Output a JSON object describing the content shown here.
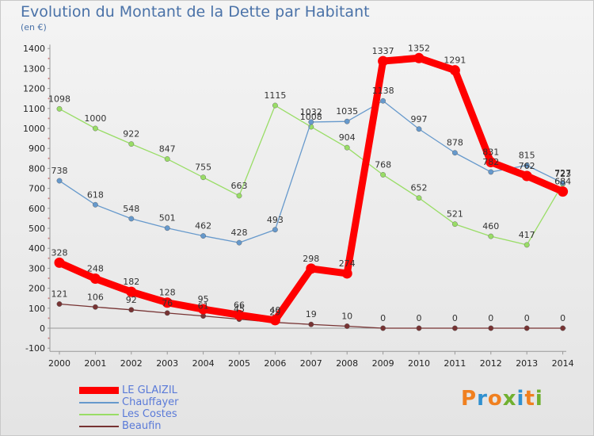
{
  "chart_data": {
    "type": "line",
    "title": "Evolution du Montant de la Dette par Habitant",
    "subtitle": "(en €)",
    "categories": [
      "2000",
      "2001",
      "2002",
      "2003",
      "2004",
      "2005",
      "2006",
      "2007",
      "2008",
      "2009",
      "2010",
      "2011",
      "2012",
      "2013",
      "2014"
    ],
    "y_ticks": [
      "-100",
      "0",
      "100",
      "200",
      "300",
      "400",
      "500",
      "600",
      "700",
      "800",
      "900",
      "1000",
      "1100",
      "1200",
      "1300",
      "1400"
    ],
    "ylim": [
      -100,
      1400
    ],
    "grid": false,
    "legend_position": "bottom-left",
    "series": [
      {
        "name": "LE GLAIZIL",
        "color": "#ff0000",
        "labels": [
          "328",
          "248",
          "182",
          "128",
          "95",
          "66",
          "40",
          "298",
          "274",
          "1337",
          "1352",
          "1291",
          "831",
          "762",
          "684"
        ],
        "values": [
          328,
          248,
          182,
          128,
          95,
          66,
          40,
          298,
          274,
          1337,
          1352,
          1291,
          831,
          762,
          684
        ]
      },
      {
        "name": "Chauffayer",
        "color": "#6699cc",
        "labels": [
          "738",
          "618",
          "548",
          "501",
          "462",
          "428",
          "493",
          "1032",
          "1035",
          "1138",
          "997",
          "878",
          "782",
          "815",
          "727"
        ],
        "values": [
          738,
          618,
          548,
          501,
          462,
          428,
          493,
          1032,
          1035,
          1138,
          997,
          878,
          782,
          815,
          727
        ]
      },
      {
        "name": "Les Costes",
        "color": "#99dd66",
        "labels": [
          "1098",
          "1000",
          "922",
          "847",
          "755",
          "663",
          "1115",
          "1008",
          "904",
          "768",
          "652",
          "521",
          "460",
          "417",
          "723"
        ],
        "values": [
          1098,
          1000,
          922,
          847,
          755,
          663,
          1115,
          1008,
          904,
          768,
          652,
          521,
          460,
          417,
          723
        ]
      },
      {
        "name": "Beaufin",
        "color": "#773333",
        "labels": [
          "121",
          "106",
          "92",
          "76",
          "61",
          "45",
          "29",
          "19",
          "10",
          "0",
          "0",
          "0",
          "0",
          "0",
          "0"
        ],
        "values": [
          121,
          106,
          92,
          76,
          61,
          45,
          29,
          19,
          10,
          0,
          0,
          0,
          0,
          0,
          0
        ]
      }
    ]
  },
  "logo": {
    "letters": [
      "P",
      "r",
      "o",
      "x",
      "i",
      "t",
      "i"
    ],
    "colors": [
      "#f08020",
      "#3090d0",
      "#f08020",
      "#70b030",
      "#3090d0",
      "#f08020",
      "#70b030"
    ]
  }
}
